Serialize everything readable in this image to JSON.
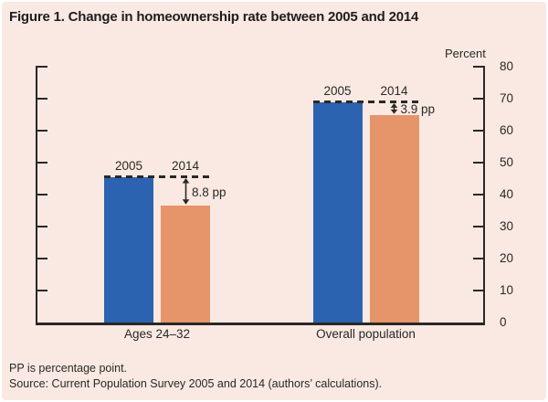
{
  "title": "Figure 1. Change in homeownership rate between 2005 and 2014",
  "chart_data": {
    "type": "bar",
    "categories": [
      "Ages 24–32",
      "Overall population"
    ],
    "series": [
      {
        "name": "2005",
        "color": "#2b63b0",
        "values": [
          45.4,
          68.8
        ]
      },
      {
        "name": "2014",
        "color": "#e6946a",
        "values": [
          36.6,
          64.9
        ]
      }
    ],
    "annotations": [
      {
        "category": "Ages 24–32",
        "label": "8.8 pp"
      },
      {
        "category": "Overall population",
        "label": "3.9 pp"
      }
    ],
    "ylabel": "Percent",
    "ylim": [
      0,
      80
    ],
    "ystep": 10,
    "y_tick_labels": [
      "0",
      "10",
      "20",
      "30",
      "40",
      "50",
      "60",
      "70",
      "80"
    ],
    "grid": false,
    "legend_position": "none",
    "bar_year_labels_above_bars": true
  },
  "footer": {
    "note": "PP is percentage point.",
    "source": "Source: Current Population Survey 2005 and 2014 (authors’ calculations)."
  },
  "colors": {
    "background": "#f9e9e2",
    "bar_2005": "#2b63b0",
    "bar_2014": "#e6946a",
    "axis": "#2a2826",
    "text": "#2a2826",
    "title_text": "#1f1d1e"
  }
}
